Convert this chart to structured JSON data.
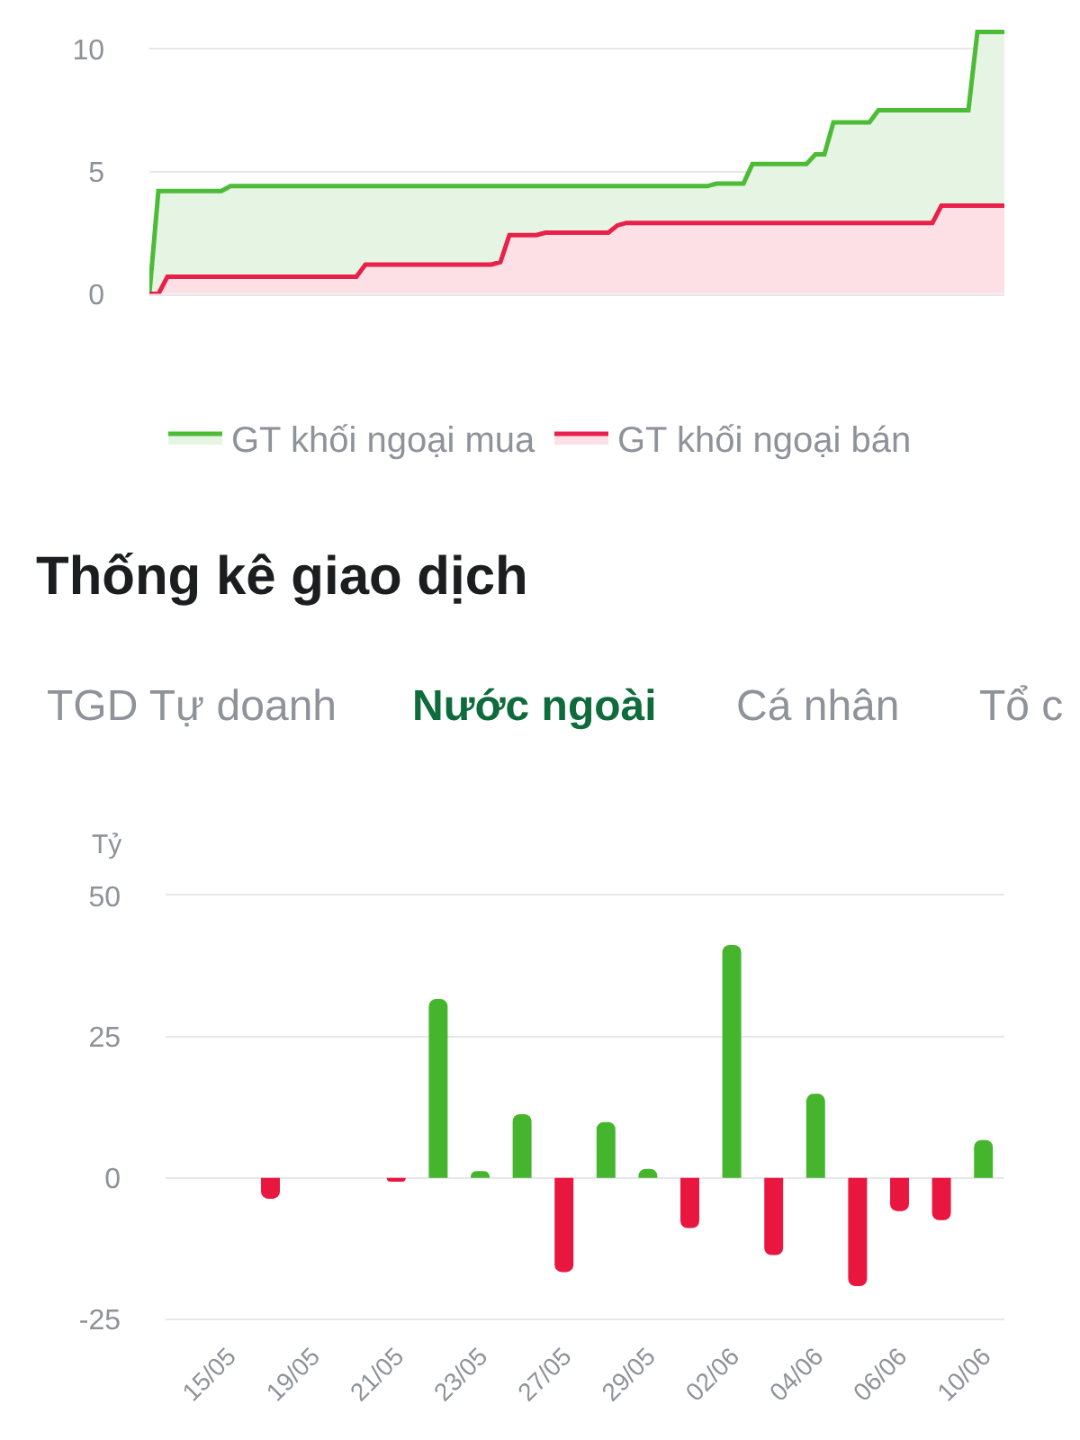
{
  "chart_data": [
    {
      "type": "area",
      "categories": [
        null,
        null,
        null,
        null,
        null,
        null,
        null,
        null,
        null,
        null,
        null,
        null,
        null,
        null,
        null,
        null,
        null,
        null,
        null,
        null,
        null,
        null,
        null,
        null,
        null,
        null,
        null,
        null,
        null,
        null,
        null,
        null,
        null,
        null,
        null,
        null,
        null,
        null,
        null,
        null,
        null,
        null,
        null,
        null,
        null,
        null,
        null,
        null,
        null,
        null,
        null,
        null,
        null,
        null,
        null,
        null,
        null,
        null,
        null,
        null,
        null,
        null,
        null,
        null,
        null,
        null,
        null,
        null,
        null,
        null,
        null,
        null,
        null,
        null,
        null,
        null,
        null,
        null,
        null,
        null,
        null,
        null,
        null,
        null,
        null,
        null,
        null,
        null,
        null,
        null,
        null,
        null,
        null,
        null,
        null,
        null
      ],
      "series": [
        {
          "name": "GT khối ngoại mua",
          "color": "#4cbb35",
          "values": [
            0,
            4.2,
            4.2,
            4.2,
            4.2,
            4.2,
            4.2,
            4.2,
            4.2,
            4.4,
            4.4,
            4.4,
            4.4,
            4.4,
            4.4,
            4.4,
            4.4,
            4.4,
            4.4,
            4.4,
            4.4,
            4.4,
            4.4,
            4.4,
            4.4,
            4.4,
            4.4,
            4.4,
            4.4,
            4.4,
            4.4,
            4.4,
            4.4,
            4.4,
            4.4,
            4.4,
            4.4,
            4.4,
            4.4,
            4.4,
            4.4,
            4.4,
            4.4,
            4.4,
            4.4,
            4.4,
            4.4,
            4.4,
            4.4,
            4.4,
            4.4,
            4.4,
            4.4,
            4.4,
            4.4,
            4.4,
            4.4,
            4.4,
            4.4,
            4.4,
            4.4,
            4.4,
            4.4,
            4.5,
            4.5,
            4.5,
            4.5,
            5.3,
            5.3,
            5.3,
            5.3,
            5.3,
            5.3,
            5.3,
            5.7,
            5.7,
            7,
            7,
            7,
            7,
            7,
            7.5,
            7.5,
            7.5,
            7.5,
            7.5,
            7.5,
            7.5,
            7.5,
            7.5,
            7.5,
            7.5,
            10.7,
            10.7,
            10.7,
            10.7
          ]
        },
        {
          "name": "GT khối ngoại bán",
          "color": "#e8214a",
          "values": [
            0,
            0,
            0.7,
            0.7,
            0.7,
            0.7,
            0.7,
            0.7,
            0.7,
            0.7,
            0.7,
            0.7,
            0.7,
            0.7,
            0.7,
            0.7,
            0.7,
            0.7,
            0.7,
            0.7,
            0.7,
            0.7,
            0.7,
            0.7,
            1.2,
            1.2,
            1.2,
            1.2,
            1.2,
            1.2,
            1.2,
            1.2,
            1.2,
            1.2,
            1.2,
            1.2,
            1.2,
            1.2,
            1.2,
            1.3,
            2.4,
            2.4,
            2.4,
            2.4,
            2.5,
            2.5,
            2.5,
            2.5,
            2.5,
            2.5,
            2.5,
            2.5,
            2.8,
            2.9,
            2.9,
            2.9,
            2.9,
            2.9,
            2.9,
            2.9,
            2.9,
            2.9,
            2.9,
            2.9,
            2.9,
            2.9,
            2.9,
            2.9,
            2.9,
            2.9,
            2.9,
            2.9,
            2.9,
            2.9,
            2.9,
            2.9,
            2.9,
            2.9,
            2.9,
            2.9,
            2.9,
            2.9,
            2.9,
            2.9,
            2.9,
            2.9,
            2.9,
            2.9,
            3.6,
            3.6,
            3.6,
            3.6,
            3.6,
            3.6,
            3.6,
            3.6
          ]
        }
      ],
      "ylim": [
        0,
        12
      ],
      "yticks": [
        0,
        5,
        10
      ],
      "grid": "y",
      "legend": "bottom",
      "tick_labels": "y"
    },
    {
      "type": "bar",
      "title": "Thống kê giao dịch",
      "subtitle": "Nước ngoài",
      "annotations": [
        "TGD Tự doanh",
        "Cá nhân",
        "Tổ c"
      ],
      "ylabel": "Tỷ",
      "categories": [
        null,
        "15/05",
        null,
        "19/05",
        null,
        "21/05",
        null,
        "23/05",
        null,
        "27/05",
        null,
        "29/05",
        null,
        "02/06",
        null,
        "04/06",
        null,
        "06/06",
        null,
        "10/06"
      ],
      "values": [
        null,
        null,
        -3.7,
        null,
        null,
        -0.7,
        31.7,
        1.2,
        11.3,
        -16.7,
        9.9,
        1.6,
        -8.9,
        41.3,
        -13.7,
        14.9,
        -19.2,
        -5.9,
        -7.5,
        6.7
      ],
      "colors": [
        "#45b52d",
        "#45b52d",
        "#e9163f",
        "#45b52d",
        "#45b52d",
        "#e9163f",
        "#45b52d",
        "#45b52d",
        "#45b52d",
        "#e9163f",
        "#45b52d",
        "#45b52d",
        "#e9163f",
        "#45b52d",
        "#e9163f",
        "#45b52d",
        "#e9163f",
        "#e9163f",
        "#e9163f",
        "#45b52d"
      ],
      "ylim": [
        -25,
        50
      ],
      "yticks": [
        -25,
        0,
        25,
        50
      ],
      "grid": "y"
    }
  ]
}
